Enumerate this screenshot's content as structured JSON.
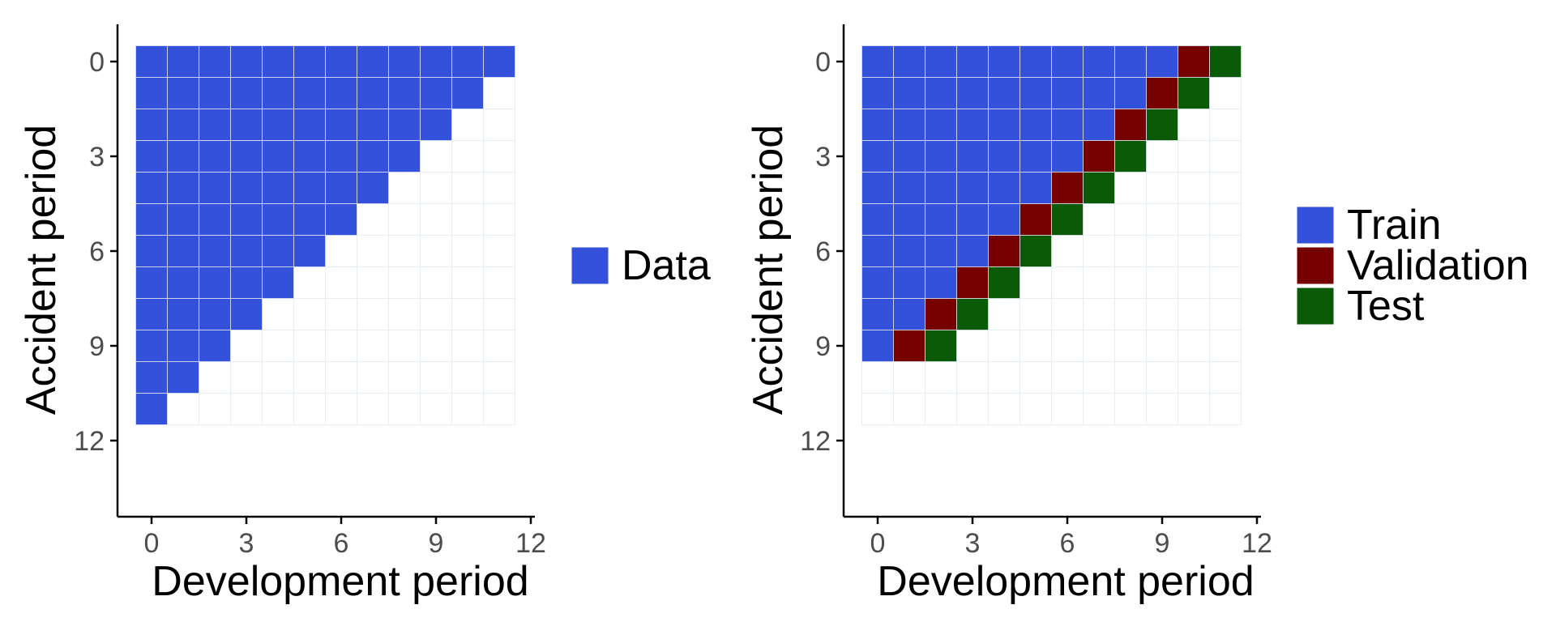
{
  "chart_data": [
    {
      "type": "heatmap",
      "xlabel": "Development period",
      "ylabel": "Accident period",
      "xlim": [
        0,
        12
      ],
      "ylim": [
        0,
        12
      ],
      "y_reversed": true,
      "x_ticks": [
        0,
        3,
        6,
        9,
        12
      ],
      "y_ticks": [
        0,
        3,
        6,
        9,
        12
      ],
      "grid": true,
      "legend_position": "right",
      "legend": [
        {
          "key": "data",
          "label": "Data",
          "color": "#3451DB"
        }
      ],
      "cell_rule": "cell(accident=i, development=j) = Data where i + j <= 11",
      "max_sum": 11
    },
    {
      "type": "heatmap",
      "xlabel": "Development period",
      "ylabel": "Accident period",
      "xlim": [
        0,
        12
      ],
      "ylim": [
        0,
        12
      ],
      "y_reversed": true,
      "x_ticks": [
        0,
        3,
        6,
        9,
        12
      ],
      "y_ticks": [
        0,
        3,
        6,
        9,
        12
      ],
      "grid": true,
      "legend_position": "right",
      "legend": [
        {
          "key": "train",
          "label": "Train",
          "color": "#3451DB"
        },
        {
          "key": "validation",
          "label": "Validation",
          "color": "#760000"
        },
        {
          "key": "test",
          "label": "Test",
          "color": "#0B5A08"
        }
      ],
      "cell_rule": "cell(accident=i, development=j) with i <= 9: Train if i + j <= 9, Validation if i + j = 10, Test if i + j = 11",
      "max_sum": 11,
      "max_accident": 9
    }
  ]
}
